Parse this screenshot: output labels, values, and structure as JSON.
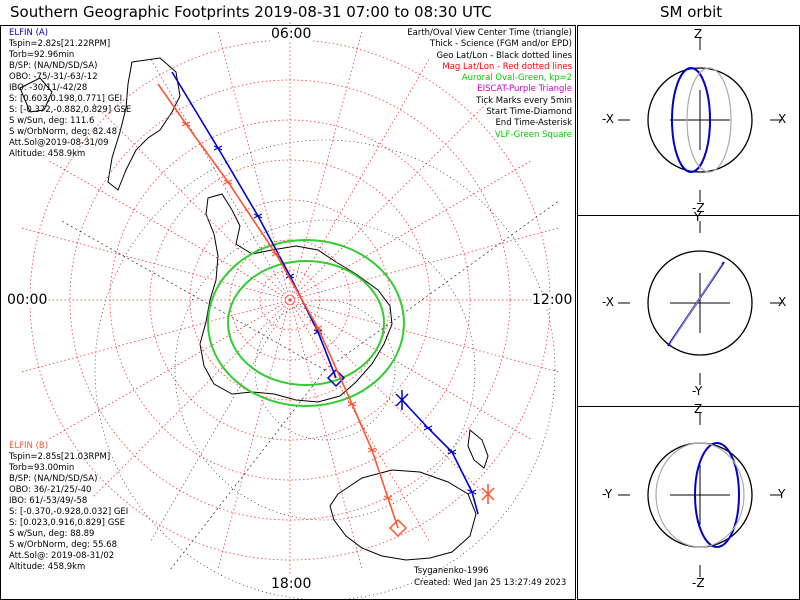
{
  "main_title": "Southern Geographic Footprints 2019-08-31 07:00 to 08:30 UTC",
  "sm_title": "SM orbit",
  "mlt_labels": {
    "top": "06:00",
    "left": "00:00",
    "right": "12:00",
    "bottom": "18:00"
  },
  "elfin_a": {
    "name": "ELFIN (A)",
    "color": "#0000cc",
    "lines": [
      "Tspin=2.82s[21.22RPM]",
      "Torb=92.96min",
      "B/SP: (NA/ND/SD/SA)",
      "OBO: -75/-31/-63/-12",
      "IBO: -30/11/-42/28",
      "S: [0.603,0.198,0.771] GEI",
      "S: [-0.372,-0.882,0.829] GSE",
      "S w/Sun, deg: 111.6",
      "S w/OrbNorm, deg: 82.48",
      "Att.Sol@2019-08-31/09",
      "Altitude: 458.9km"
    ]
  },
  "elfin_b": {
    "name": "ELFIN (B)",
    "color": "#ff5533",
    "lines": [
      "Tspin=2.85s[21.03RPM]",
      "Torb=93.00min",
      "B/SP: (NA/ND/SD/SA)",
      "OBO: 36/-21/25/-40",
      "IBO: 61/-53/49/-58",
      "S: [-0.370,-0.928,0.032] GEI",
      "S: [0.023,0.916,0.829] GSE",
      "S w/Sun, deg: 88.89",
      "S w/OrbNorm, deg: 55.68",
      "Att.Sol@: 2019-08-31/02",
      "Altitude: 458.9km"
    ]
  },
  "legend": [
    {
      "text": "Earth/Oval View Center Time (triangle)",
      "color": "#000000"
    },
    {
      "text": "Thick - Science (FGM and/or EPD)",
      "color": "#000000"
    },
    {
      "text": "Geo Lat/Lon - Black dotted lines",
      "color": "#000000"
    },
    {
      "text": "Mag Lat/Lon - Red dotted lines",
      "color": "#ff0000"
    },
    {
      "text": "Auroral Oval-Green, kp=2",
      "color": "#00cc00"
    },
    {
      "text": "EISCAT-Purple Triangle",
      "color": "#cc00cc"
    },
    {
      "text": "Tick Marks every 5min",
      "color": "#000000"
    },
    {
      "text": "Start Time-Diamond",
      "color": "#000000"
    },
    {
      "text": "End Time-Asterisk",
      "color": "#000000"
    },
    {
      "text": "VLF-Green Square",
      "color": "#00cc00"
    }
  ],
  "credits": {
    "model": "Tsyganenko-1996",
    "created": "Created: Wed Jan 25 13:27:49 2023"
  },
  "sm_panels": [
    {
      "top": "Z",
      "bottom": "-Z",
      "left": "-X",
      "right": "X"
    },
    {
      "top": "Y",
      "bottom": "-Y",
      "left": "-X",
      "right": "X"
    },
    {
      "top": "Z",
      "bottom": "-Z",
      "left": "-Y",
      "right": "Y"
    }
  ],
  "colors": {
    "elfin_a": "#0000cc",
    "elfin_b": "#ff5533",
    "oval": "#33cc33",
    "grid_mag": "#ff3333",
    "grid_geo": "#000000"
  }
}
